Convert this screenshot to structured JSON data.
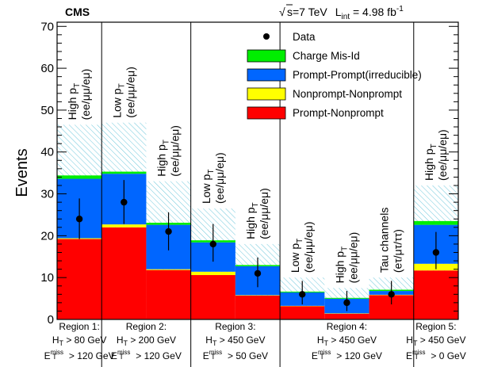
{
  "chart_data": {
    "type": "bar",
    "experiment": "CMS",
    "lumi_text": {
      "sqrt_s": "s=7 TeV",
      "lumi_prefix": "L",
      "lumi_sub": "int",
      "lumi_value": " = 4.98 fb",
      "lumi_sup": "-1"
    },
    "ylabel": "Events",
    "ylim": [
      0,
      71
    ],
    "yticks": [
      0,
      10,
      20,
      30,
      40,
      50,
      60,
      70
    ],
    "legend_placement": "top-right",
    "legend": [
      {
        "key": "data",
        "label": "Data",
        "kind": "marker"
      },
      {
        "key": "charge_misid",
        "label": "Charge Mis-Id",
        "kind": "box",
        "color": "#00ee00"
      },
      {
        "key": "prompt_prompt",
        "label": "Prompt-Prompt(irreducible)",
        "kind": "box",
        "color": "#0066ff"
      },
      {
        "key": "nonprompt_nonprompt",
        "label": "Nonprompt-Nonprompt",
        "kind": "box",
        "color": "#ffff00"
      },
      {
        "key": "prompt_nonprompt",
        "label": "Prompt-Nonprompt",
        "kind": "box",
        "color": "#ff0000"
      }
    ],
    "stack_order": [
      "prompt_nonprompt",
      "nonprompt_nonprompt",
      "prompt_prompt",
      "charge_misid"
    ],
    "colors": {
      "prompt_nonprompt": "#ff0000",
      "nonprompt_nonprompt": "#ffff00",
      "prompt_prompt": "#0066ff",
      "charge_misid": "#00ee00",
      "uncertainty_hatch": "#6fc8dc"
    },
    "bins": [
      {
        "label_main": "High p",
        "label_sub": "T",
        "label_line2": "(ee/μμ/eμ)",
        "prompt_nonprompt": 19.2,
        "nonprompt_nonprompt": 0.2,
        "prompt_prompt": 14.2,
        "charge_misid": 0.8,
        "uncertainty_high": 46.5,
        "data": 24,
        "data_err_low": 4.8,
        "data_err_high": 4.9
      },
      {
        "label_main": "Low p",
        "label_sub": "T",
        "label_line2": "(ee/μμ/eμ)",
        "prompt_nonprompt": 22.0,
        "nonprompt_nonprompt": 0.7,
        "prompt_prompt": 12.1,
        "charge_misid": 0.5,
        "uncertainty_high": 47.0,
        "data": 28,
        "data_err_low": 5.2,
        "data_err_high": 5.3
      },
      {
        "label_main": "High p",
        "label_sub": "T",
        "label_line2": "(ee/μμ/eμ)",
        "prompt_nonprompt": 11.8,
        "nonprompt_nonprompt": 0.2,
        "prompt_prompt": 10.6,
        "charge_misid": 0.5,
        "uncertainty_high": 33.0,
        "data": 21,
        "data_err_low": 4.5,
        "data_err_high": 4.6
      },
      {
        "label_main": "Low p",
        "label_sub": "T",
        "label_line2": "(ee/μμ/eμ)",
        "prompt_nonprompt": 10.6,
        "nonprompt_nonprompt": 0.8,
        "prompt_prompt": 7.0,
        "charge_misid": 0.5,
        "uncertainty_high": 26.5,
        "data": 18,
        "data_err_low": 4.2,
        "data_err_high": 4.8
      },
      {
        "label_main": "High p",
        "label_sub": "T",
        "label_line2": "(ee/μμ/eμ)",
        "prompt_nonprompt": 5.7,
        "nonprompt_nonprompt": 0.1,
        "prompt_prompt": 6.9,
        "charge_misid": 0.3,
        "uncertainty_high": 18.0,
        "data": 11,
        "data_err_low": 3.3,
        "data_err_high": 3.8
      },
      {
        "label_main": "Low p",
        "label_sub": "T",
        "label_line2": "(ee/μμ/eμ)",
        "prompt_nonprompt": 3.2,
        "nonprompt_nonprompt": 0.05,
        "prompt_prompt": 3.2,
        "charge_misid": 0.2,
        "uncertainty_high": 10.0,
        "data": 6,
        "data_err_low": 2.4,
        "data_err_high": 3.2
      },
      {
        "label_main": "High p",
        "label_sub": "T",
        "label_line2": "(ee/μμ/eμ)",
        "prompt_nonprompt": 1.4,
        "nonprompt_nonprompt": 0.05,
        "prompt_prompt": 3.5,
        "charge_misid": 0.2,
        "uncertainty_high": 7.5,
        "data": 4,
        "data_err_low": 2.0,
        "data_err_high": 2.8
      },
      {
        "label_main": "Tau channels",
        "label_sub": "",
        "label_line2": "(eτ/μτ/ττ)",
        "prompt_nonprompt": 5.8,
        "nonprompt_nonprompt": 0.1,
        "prompt_prompt": 0.9,
        "charge_misid": 0.3,
        "uncertainty_high": 10.0,
        "data": 6,
        "data_err_low": 2.4,
        "data_err_high": 3.2
      },
      {
        "label_main": "High p",
        "label_sub": "T",
        "label_line2": "(ee/μμ/eμ)",
        "prompt_nonprompt": 11.7,
        "nonprompt_nonprompt": 1.6,
        "prompt_prompt": 9.3,
        "charge_misid": 0.9,
        "uncertainty_high": 32.0,
        "data": 16,
        "data_err_low": 4.0,
        "data_err_high": 4.9
      }
    ],
    "regions": [
      {
        "name": "Region 1:",
        "ht": "> 80 GeV",
        "met": "> 120 GeV",
        "bins": [
          0
        ]
      },
      {
        "name": "Region 2:",
        "ht": "> 200 GeV",
        "met": "> 120 GeV",
        "bins": [
          1,
          2
        ]
      },
      {
        "name": "Region 3:",
        "ht": "> 450 GeV",
        "met": "> 50 GeV",
        "bins": [
          3,
          4
        ]
      },
      {
        "name": "Region 4:",
        "ht": "> 450 GeV",
        "met": "> 120 GeV",
        "bins": [
          5,
          6,
          7
        ]
      },
      {
        "name": "Region 5:",
        "ht": "> 450 GeV",
        "met": "> 0 GeV",
        "bins": [
          8
        ]
      }
    ],
    "region_symbols": {
      "ht_main": "H",
      "ht_sub": "T",
      "met_main": "E",
      "met_sup": "miss",
      "met_sub": "T"
    }
  }
}
